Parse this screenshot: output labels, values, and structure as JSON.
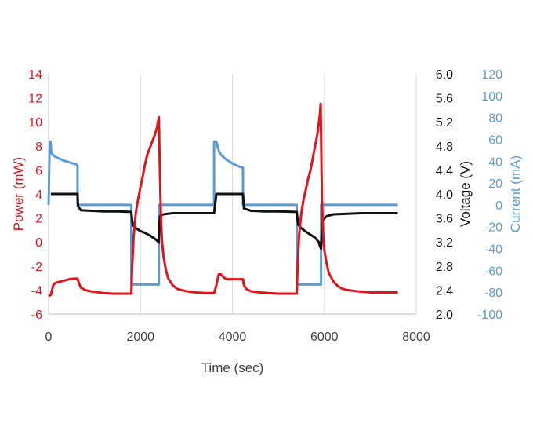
{
  "chart_data": {
    "type": "line",
    "xlabel": "Time (sec)",
    "xlim": [
      0,
      8000
    ],
    "xticks": [
      "0",
      "2000",
      "4000",
      "6000",
      "8000"
    ],
    "grid": "vertical",
    "axes": {
      "power": {
        "label": "Power (mW)",
        "color": "#e0151c",
        "side": "left",
        "ylim": [
          -6,
          14
        ],
        "ticks": [
          "-6",
          "-4",
          "-2",
          "0",
          "2",
          "4",
          "6",
          "8",
          "10",
          "12",
          "14"
        ]
      },
      "voltage": {
        "label": "Voltage (V)",
        "color": "#111111",
        "side": "right-inner",
        "ylim": [
          2.0,
          6.0
        ],
        "ticks": [
          "2.0",
          "2.4",
          "2.8",
          "3.2",
          "3.6",
          "4.0",
          "4.4",
          "4.8",
          "5.2",
          "5.6",
          "6.0"
        ]
      },
      "current": {
        "label": "Current (mA)",
        "color": "#5b9bd5",
        "side": "right-outer",
        "ylim": [
          -100,
          120
        ],
        "ticks": [
          "-100",
          "-80",
          "-60",
          "-40",
          "-20",
          "0",
          "20",
          "40",
          "60",
          "80",
          "100",
          "120"
        ]
      }
    },
    "series": [
      {
        "axis": "current",
        "color": "#5b9bd5",
        "x": [
          0,
          20,
          40,
          60,
          80,
          150,
          300,
          450,
          600,
          630,
          630,
          1800,
          1800,
          2400,
          2400,
          3600,
          3600,
          3650,
          3700,
          3750,
          3850,
          4000,
          4150,
          4230,
          4230,
          5400,
          5400,
          5930,
          5930,
          7600
        ],
        "y": [
          0,
          50,
          58,
          48,
          46,
          44,
          41,
          39,
          37,
          36,
          0,
          0,
          -73,
          -73,
          0,
          0,
          58,
          58,
          50,
          46,
          42,
          38,
          35,
          34,
          0,
          0,
          -73,
          -73,
          0,
          0
        ]
      },
      {
        "axis": "voltage",
        "color": "#111111",
        "x": [
          50,
          630,
          640,
          700,
          900,
          1200,
          1500,
          1800,
          1830,
          1900,
          2000,
          2100,
          2200,
          2300,
          2350,
          2400,
          2420,
          2430,
          2500,
          2700,
          3000,
          3300,
          3600,
          3650,
          4000,
          4230,
          4250,
          4400,
          4700,
          5000,
          5400,
          5430,
          5500,
          5600,
          5700,
          5800,
          5880,
          5900,
          5930,
          5960,
          6050,
          6200,
          6500,
          6800,
          7200,
          7600
        ],
        "y": [
          4.0,
          4.0,
          3.8,
          3.73,
          3.72,
          3.71,
          3.71,
          3.7,
          3.48,
          3.43,
          3.38,
          3.35,
          3.31,
          3.26,
          3.23,
          3.19,
          3.62,
          3.64,
          3.66,
          3.68,
          3.68,
          3.68,
          3.68,
          4.0,
          4.0,
          4.0,
          3.76,
          3.72,
          3.71,
          3.71,
          3.7,
          3.49,
          3.43,
          3.37,
          3.32,
          3.27,
          3.2,
          3.14,
          3.09,
          3.56,
          3.63,
          3.66,
          3.67,
          3.68,
          3.68,
          3.68
        ]
      },
      {
        "axis": "power",
        "color": "#e0151c",
        "x": [
          0,
          50,
          100,
          150,
          250,
          350,
          450,
          550,
          630,
          650,
          700,
          800,
          900,
          1000,
          1200,
          1400,
          1600,
          1800,
          1820,
          1850,
          1900,
          1950,
          2000,
          2050,
          2100,
          2150,
          2200,
          2250,
          2300,
          2350,
          2400,
          2420,
          2440,
          2450,
          2470,
          2500,
          2550,
          2600,
          2700,
          2800,
          3000,
          3200,
          3400,
          3600,
          3650,
          3700,
          3750,
          3800,
          3850,
          3900,
          3950,
          4000,
          4100,
          4200,
          4230,
          4250,
          4300,
          4400,
          4600,
          4800,
          5000,
          5200,
          5400,
          5420,
          5450,
          5500,
          5550,
          5600,
          5650,
          5700,
          5750,
          5800,
          5850,
          5900,
          5920,
          5940,
          5950,
          5970,
          6000,
          6050,
          6100,
          6200,
          6300,
          6400,
          6500,
          6700,
          7000,
          7300,
          7600
        ],
        "y": [
          -4.5,
          -4.4,
          -3.6,
          -3.4,
          -3.3,
          -3.2,
          -3.1,
          -3.05,
          -3.05,
          -3.3,
          -3.8,
          -4.0,
          -4.1,
          -4.15,
          -4.25,
          -4.3,
          -4.3,
          -4.3,
          -2.0,
          0.5,
          2.5,
          3.6,
          4.6,
          5.5,
          6.5,
          7.3,
          7.8,
          8.3,
          8.8,
          9.4,
          10.4,
          6.0,
          3.0,
          1.5,
          0.0,
          -1.2,
          -2.3,
          -3.0,
          -3.6,
          -3.9,
          -4.1,
          -4.2,
          -4.25,
          -4.25,
          -3.6,
          -2.7,
          -2.7,
          -2.9,
          -3.05,
          -3.1,
          -3.1,
          -3.1,
          -3.1,
          -3.1,
          -3.1,
          -3.6,
          -3.9,
          -4.1,
          -4.2,
          -4.25,
          -4.3,
          -4.3,
          -4.3,
          -2.0,
          0.5,
          2.4,
          3.6,
          4.4,
          5.3,
          6.0,
          7.0,
          8.0,
          9.0,
          10.5,
          11.5,
          6.0,
          3.5,
          1.0,
          -0.7,
          -1.8,
          -2.6,
          -3.3,
          -3.7,
          -3.9,
          -4.0,
          -4.1,
          -4.2,
          -4.2,
          -4.2
        ]
      }
    ]
  }
}
